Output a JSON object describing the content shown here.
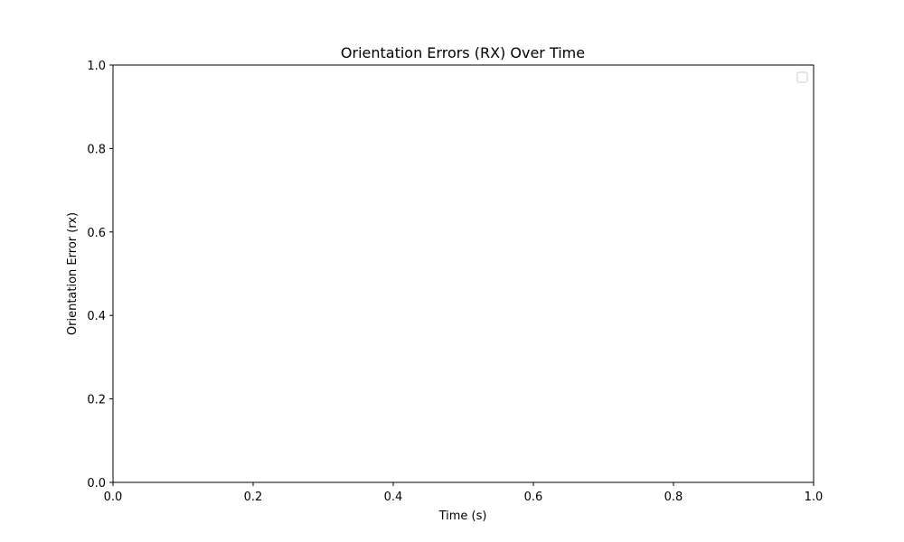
{
  "chart_data": {
    "type": "line",
    "title": "Orientation Errors (RX) Over Time",
    "xlabel": "Time (s)",
    "ylabel": "Orientation Error (rx)",
    "xlim": [
      0.0,
      1.0
    ],
    "ylim": [
      0.0,
      1.0
    ],
    "x_ticks": [
      "0.0",
      "0.2",
      "0.4",
      "0.6",
      "0.8",
      "1.0"
    ],
    "y_ticks": [
      "0.0",
      "0.2",
      "0.4",
      "0.6",
      "0.8",
      "1.0"
    ],
    "series": [],
    "grid": false,
    "legend": {
      "placement": "top-right",
      "entries": []
    }
  },
  "colors": {
    "axis": "#000000",
    "background": "#ffffff",
    "legend_border": "#cccccc"
  }
}
